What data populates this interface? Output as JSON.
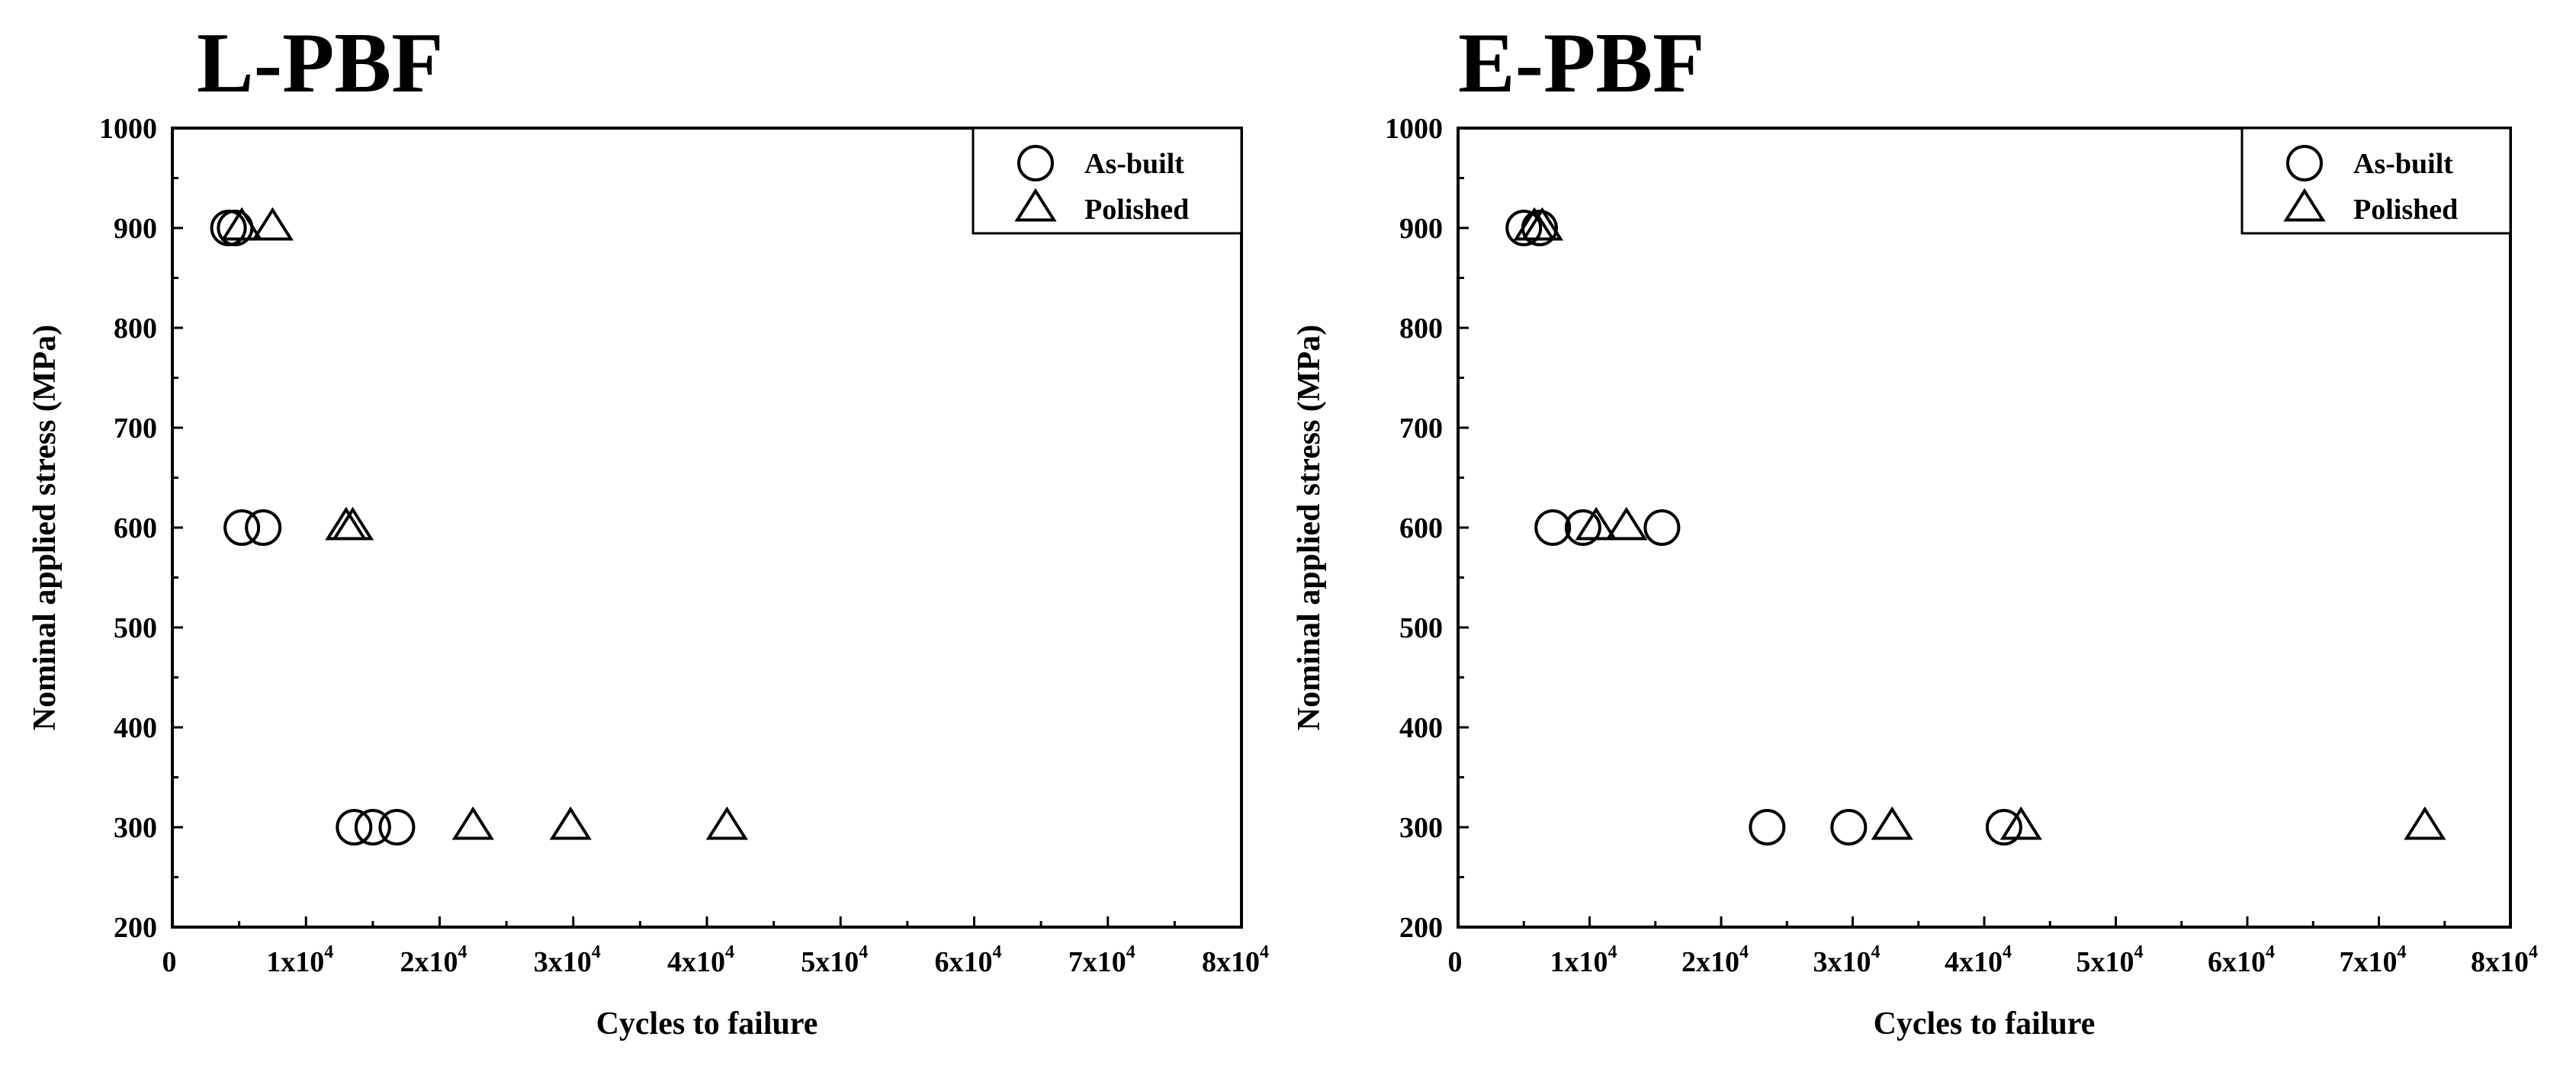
{
  "chart_data": [
    {
      "type": "scatter",
      "title": "L-PBF",
      "xlabel": "Cycles to failure",
      "ylabel": "Nominal applied stress (MPa)",
      "xlim": [
        0,
        80000
      ],
      "ylim": [
        200,
        1000
      ],
      "xticks": [
        0,
        10000,
        20000,
        30000,
        40000,
        50000,
        60000,
        70000,
        80000
      ],
      "xtick_labels": [
        "0",
        "1x10",
        "2x10",
        "3x10",
        "4x10",
        "5x10",
        "6x10",
        "7x10",
        "8x10"
      ],
      "xtick_exponent": "4",
      "yticks": [
        200,
        300,
        400,
        500,
        600,
        700,
        800,
        900,
        1000
      ],
      "ytick_labels": [
        "200",
        "300",
        "400",
        "500",
        "600",
        "700",
        "800",
        "900",
        "1000"
      ],
      "legend_position": "top-right",
      "series": [
        {
          "name": "As-built",
          "marker": "circle",
          "points": [
            [
              4200,
              900
            ],
            [
              4700,
              900
            ],
            [
              5200,
              600
            ],
            [
              6800,
              600
            ],
            [
              13600,
              300
            ],
            [
              15000,
              300
            ],
            [
              16800,
              300
            ]
          ]
        },
        {
          "name": "Polished",
          "marker": "triangle",
          "points": [
            [
              5200,
              900
            ],
            [
              7500,
              900
            ],
            [
              13000,
              600
            ],
            [
              13500,
              600
            ],
            [
              22500,
              300
            ],
            [
              29800,
              300
            ],
            [
              41500,
              300
            ]
          ]
        }
      ]
    },
    {
      "type": "scatter",
      "title": "E-PBF",
      "xlabel": "Cycles to failure",
      "ylabel": "Nominal applied stress (MPa)",
      "xlim": [
        0,
        80000
      ],
      "ylim": [
        200,
        1000
      ],
      "xticks": [
        0,
        10000,
        20000,
        30000,
        40000,
        50000,
        60000,
        70000,
        80000
      ],
      "xtick_labels": [
        "0",
        "1x10",
        "2x10",
        "3x10",
        "4x10",
        "5x10",
        "6x10",
        "7x10",
        "8x10"
      ],
      "xtick_exponent": "4",
      "yticks": [
        200,
        300,
        400,
        500,
        600,
        700,
        800,
        900,
        1000
      ],
      "ytick_labels": [
        "200",
        "300",
        "400",
        "500",
        "600",
        "700",
        "800",
        "900",
        "1000"
      ],
      "legend_position": "top-right",
      "series": [
        {
          "name": "As-built",
          "marker": "circle",
          "points": [
            [
              5000,
              900
            ],
            [
              6200,
              900
            ],
            [
              7200,
              600
            ],
            [
              9500,
              600
            ],
            [
              15500,
              600
            ],
            [
              23500,
              300
            ],
            [
              29700,
              300
            ],
            [
              41500,
              300
            ]
          ]
        },
        {
          "name": "Polished",
          "marker": "triangle",
          "points": [
            [
              5800,
              900
            ],
            [
              6400,
              900
            ],
            [
              10500,
              600
            ],
            [
              12800,
              600
            ],
            [
              33000,
              300
            ],
            [
              42800,
              300
            ],
            [
              73500,
              300
            ]
          ]
        }
      ]
    }
  ]
}
